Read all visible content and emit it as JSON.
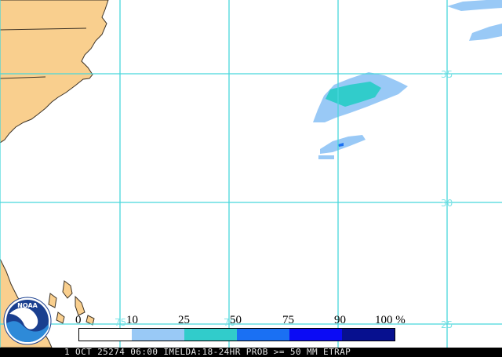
{
  "map": {
    "latitude_labels": [
      "35",
      "30",
      "25"
    ],
    "longitude_labels": [
      "75",
      "70"
    ],
    "colors": {
      "ocean": "#ffffff",
      "land": "#f9cf8e",
      "grid": "#48d7dc",
      "prob_10": "#99c9f6",
      "prob_25": "#31cccb",
      "prob_50": "#1a70f3",
      "prob_75": "#0b0bf5",
      "prob_90": "#07108f"
    }
  },
  "legend": {
    "labels": [
      "0",
      "10",
      "25",
      "50",
      "75",
      "90",
      "100 %"
    ],
    "swatches": [
      "#ffffff",
      "#99c9f6",
      "#31cccb",
      "#1a70f3",
      "#0b0bf5",
      "#07108f"
    ]
  },
  "logo": {
    "text": "NOAA",
    "icon": "noaa-logo-icon"
  },
  "status_bar": {
    "text": "1 OCT 25274 06:00 IMELDA:18-24HR PROB >= 50 MM ETRAP"
  }
}
